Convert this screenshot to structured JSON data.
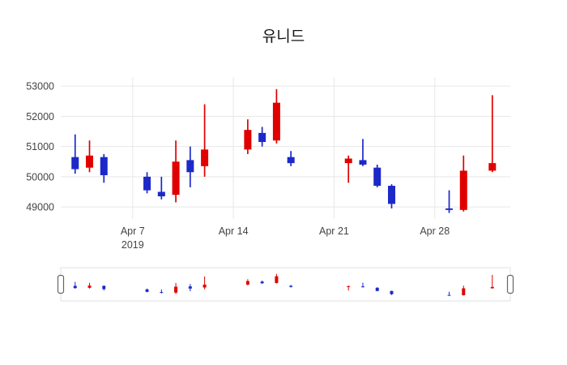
{
  "page": {
    "background": "#ffffff"
  },
  "chart_data": {
    "type": "candlestick",
    "title": "유니드",
    "x": [
      "2019-04-03",
      "2019-04-04",
      "2019-04-05",
      "2019-04-08",
      "2019-04-09",
      "2019-04-10",
      "2019-04-11",
      "2019-04-12",
      "2019-04-15",
      "2019-04-16",
      "2019-04-17",
      "2019-04-18",
      "2019-04-22",
      "2019-04-23",
      "2019-04-24",
      "2019-04-25",
      "2019-04-29",
      "2019-04-30",
      "2019-05-02"
    ],
    "open": [
      50650,
      50300,
      50650,
      50000,
      49500,
      49400,
      50550,
      50350,
      50900,
      51450,
      51200,
      50650,
      50450,
      50550,
      50300,
      49700,
      48950,
      48900,
      50200
    ],
    "high": [
      51400,
      51200,
      50750,
      50150,
      50000,
      51200,
      51000,
      52400,
      51900,
      51650,
      52900,
      50850,
      50700,
      51250,
      50400,
      49750,
      49550,
      50700,
      52700
    ],
    "low": [
      50100,
      50150,
      49800,
      49450,
      49250,
      49150,
      49650,
      50000,
      50750,
      51000,
      51100,
      50350,
      49800,
      50350,
      49650,
      48950,
      48800,
      48850,
      50150
    ],
    "close": [
      50250,
      50700,
      50050,
      49550,
      49350,
      50500,
      50150,
      50900,
      51550,
      51150,
      52450,
      50450,
      50600,
      50400,
      49700,
      49100,
      48900,
      50200,
      50450
    ],
    "increasing_color": "#e00000",
    "decreasing_color": "#1c29c8",
    "grid_color": "#e7e7e7",
    "ylim": [
      48600,
      53300
    ],
    "xlim": [
      "2019-04-02T00:00",
      "2019-05-03T06:00"
    ],
    "yticks": [
      49000,
      50000,
      51000,
      52000,
      53000
    ],
    "xticks": [
      {
        "date": "2019-04-07",
        "label": "Apr 7",
        "sublabel": "2019"
      },
      {
        "date": "2019-04-14",
        "label": "Apr 14"
      },
      {
        "date": "2019-04-21",
        "label": "Apr 21"
      },
      {
        "date": "2019-04-28",
        "label": "Apr 28"
      }
    ],
    "grid": true,
    "legend": false,
    "rangeslider": true
  }
}
